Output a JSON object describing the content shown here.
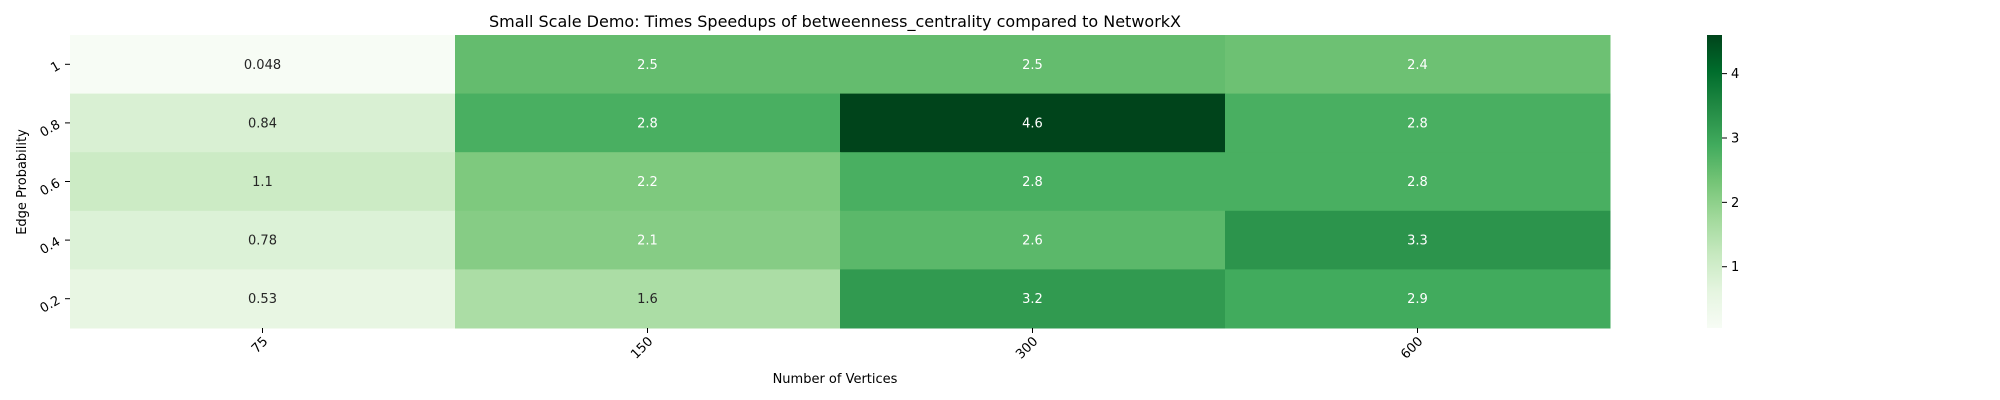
{
  "chart_data": {
    "type": "heatmap",
    "title": "Small Scale Demo: Times Speedups of betweenness_centrality compared to NetworkX",
    "xlabel": "Number of Vertices",
    "ylabel": "Edge Probability",
    "x_categories": [
      "75",
      "150",
      "300",
      "600"
    ],
    "y_categories": [
      "1",
      "0.8",
      "0.6",
      "0.4",
      "0.2"
    ],
    "values": [
      [
        0.048,
        2.5,
        2.5,
        2.4
      ],
      [
        0.84,
        2.8,
        4.6,
        2.8
      ],
      [
        1.1,
        2.2,
        2.8,
        2.8
      ],
      [
        0.78,
        2.1,
        2.6,
        3.3
      ],
      [
        0.53,
        1.6,
        3.2,
        2.9
      ]
    ],
    "cell_labels": [
      [
        "0.048",
        "2.5",
        "2.5",
        "2.4"
      ],
      [
        "0.84",
        "2.8",
        "4.6",
        "2.8"
      ],
      [
        "1.1",
        "2.2",
        "2.8",
        "2.8"
      ],
      [
        "0.78",
        "2.1",
        "2.6",
        "3.3"
      ],
      [
        "0.53",
        "1.6",
        "3.2",
        "2.9"
      ]
    ],
    "colorscale": "Greens",
    "vmin": 0.048,
    "vmax": 4.6,
    "colorbar_ticks": [
      "1",
      "2",
      "3",
      "4"
    ],
    "colorbar_tick_values": [
      1,
      2,
      3,
      4
    ],
    "grid": false,
    "legend": "colorbar-right"
  }
}
